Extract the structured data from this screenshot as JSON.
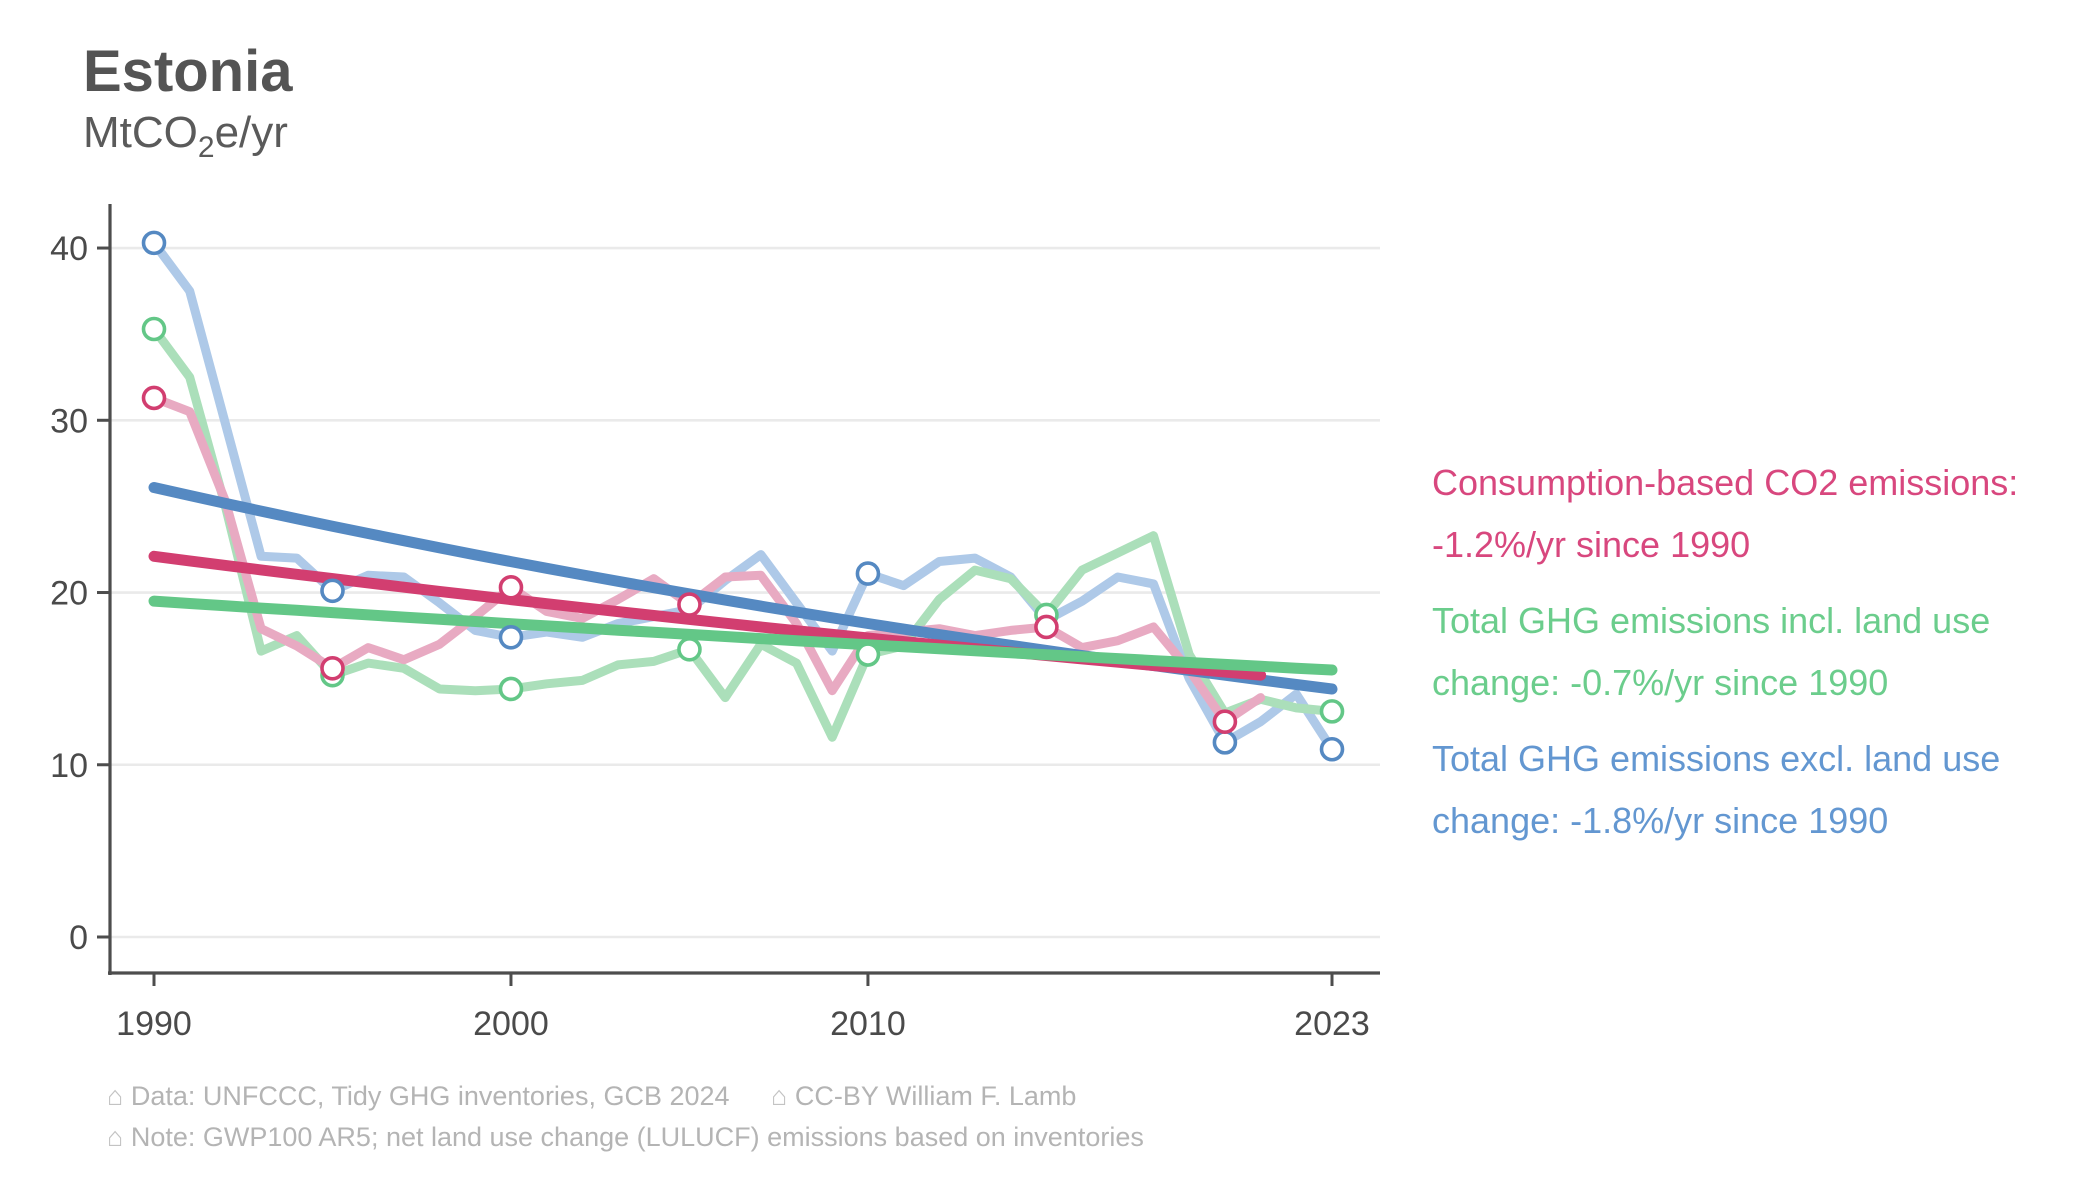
{
  "header": {
    "title": "Estonia",
    "unit": {
      "pre": "MtCO",
      "sub": "2",
      "post": "e/yr"
    }
  },
  "chart_data": {
    "type": "line",
    "title": "Estonia",
    "ylabel": "MtCO2e/yr",
    "ylim": [
      0,
      43
    ],
    "yticks": [
      0,
      10,
      20,
      30,
      40
    ],
    "xticks": [
      1990,
      2000,
      2010,
      2023
    ],
    "x_range": [
      1990,
      2023
    ],
    "grid": "horizontal-only",
    "legend_position": "right",
    "colors": {
      "grid": "#eaeaea",
      "axis": "#4d4d4d",
      "tick_text": "#4a4a4a",
      "marker_fill": "#ffffff"
    },
    "series": [
      {
        "id": "ghg_excl_luc",
        "name": "Total GHG emissions excl. land use change",
        "trend_label": "-1.8%/yr since 1990",
        "color_pale": "#aec9e8",
        "color_trend": "#5589c2",
        "start_year": 1990,
        "years_end": 2023,
        "values": [
          40.3,
          37.5,
          29.8,
          22.1,
          22.0,
          20.1,
          21.0,
          20.9,
          19.4,
          17.8,
          17.4,
          17.7,
          17.4,
          18.2,
          18.6,
          19.0,
          20.7,
          22.2,
          19.4,
          16.6,
          21.1,
          20.4,
          21.8,
          22.0,
          20.9,
          18.4,
          19.5,
          20.9,
          20.5,
          15.0,
          11.3,
          12.5,
          14.1,
          10.9
        ],
        "marker_years": [
          1990,
          1995,
          2000,
          2010,
          2020,
          2023
        ],
        "trend": {
          "start_year": 1990,
          "end_year": 2023,
          "start_value": 26.1,
          "end_value": 14.4
        }
      },
      {
        "id": "ghg_incl_luc",
        "name": "Total GHG emissions incl. land use change",
        "trend_label": "-0.7%/yr since 1990",
        "color_pale": "#abdfba",
        "color_trend": "#63c787",
        "start_year": 1990,
        "years_end": 2023,
        "values": [
          35.3,
          32.5,
          25.0,
          16.6,
          17.5,
          15.2,
          15.9,
          15.6,
          14.4,
          14.3,
          14.4,
          14.7,
          14.9,
          15.8,
          16.0,
          16.7,
          13.9,
          17.0,
          15.9,
          11.6,
          16.4,
          16.9,
          19.6,
          21.3,
          20.8,
          18.7,
          21.3,
          22.3,
          23.3,
          16.4,
          13.0,
          13.8,
          13.3,
          13.1
        ],
        "marker_years": [
          1990,
          1995,
          2000,
          2005,
          2010,
          2015,
          2023
        ],
        "trend": {
          "start_year": 1990,
          "end_year": 2023,
          "start_value": 19.5,
          "end_value": 15.5
        }
      },
      {
        "id": "consumption_co2",
        "name": "Consumption-based CO2 emissions",
        "trend_label": "-1.2%/yr since 1990",
        "color_pale": "#e8aac2",
        "color_trend": "#d23e70",
        "start_year": 1990,
        "years_end": 2021,
        "values": [
          31.3,
          30.5,
          25.3,
          17.9,
          16.9,
          15.6,
          16.8,
          16.1,
          17.0,
          18.6,
          20.3,
          18.9,
          18.5,
          19.6,
          20.8,
          19.3,
          20.9,
          21.0,
          18.2,
          14.3,
          17.5,
          17.7,
          17.9,
          17.5,
          17.8,
          18.0,
          16.8,
          17.2,
          18.0,
          15.5,
          12.5,
          13.9
        ],
        "marker_years": [
          1990,
          1995,
          2000,
          2005,
          2015,
          2020
        ],
        "trend": {
          "start_year": 1990,
          "end_year": 2021,
          "start_value": 22.1,
          "end_value": 15.2
        }
      }
    ]
  },
  "legend": {
    "items": [
      {
        "label": "Consumption-based CO2 emissions: -1.2%/yr since 1990",
        "color": "#d8477e"
      },
      {
        "label": "Total GHG emissions incl. land use change: -0.7%/yr since 1990",
        "color": "#6bcd8c"
      },
      {
        "label": "Total GHG emissions excl. land use change: -1.8%/yr since 1990",
        "color": "#6397d1"
      }
    ]
  },
  "caption": {
    "icon": "⌂",
    "line1_seg1": "Data: UNFCCC, Tidy GHG inventories, GCB 2024",
    "line1_seg2": "CC-BY William F. Lamb",
    "line2": "Note: GWP100 AR5; net land use change (LULUCF) emissions based on inventories"
  }
}
